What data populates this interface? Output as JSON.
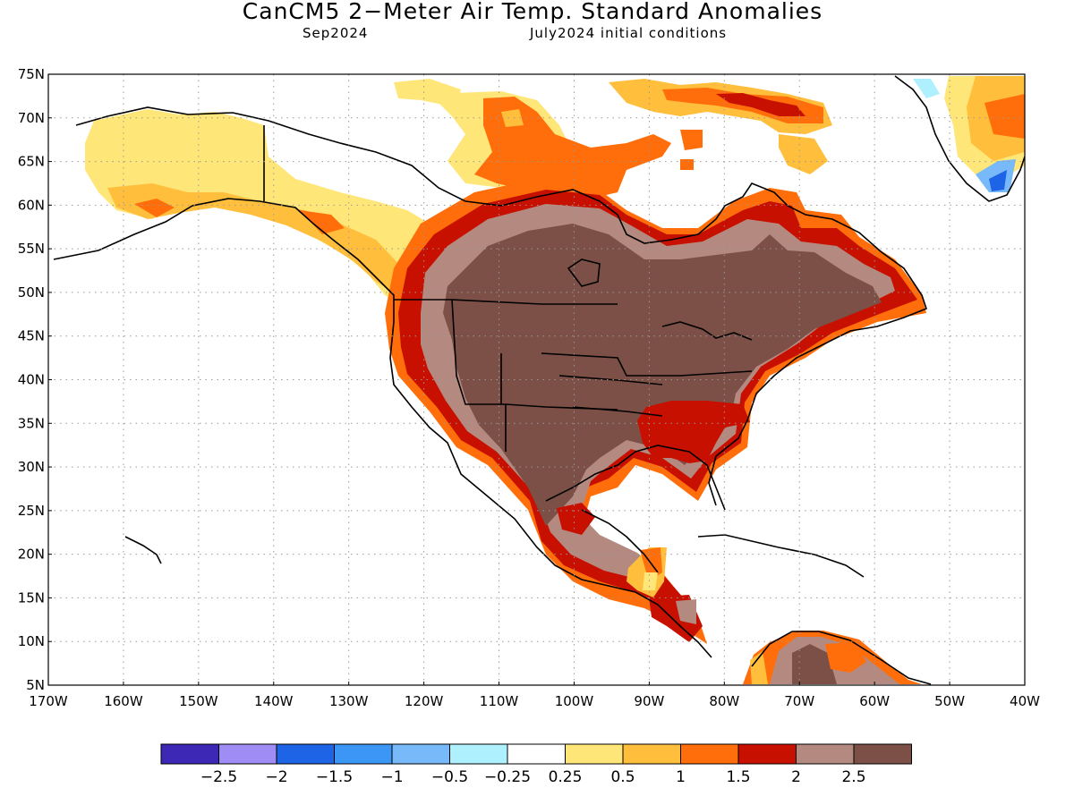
{
  "title": "CanCM5 2−Meter Air Temp. Standard Anomalies",
  "subtitle_left": "Sep2024",
  "subtitle_right": "July2024 initial conditions",
  "map": {
    "lon_range": [
      -170,
      -40
    ],
    "lat_range": [
      5,
      75
    ],
    "lat_ticks": [
      "75N",
      "70N",
      "65N",
      "60N",
      "55N",
      "50N",
      "45N",
      "40N",
      "35N",
      "30N",
      "25N",
      "20N",
      "15N",
      "10N",
      "5N"
    ],
    "lon_ticks": [
      "170W",
      "160W",
      "150W",
      "140W",
      "130W",
      "120W",
      "110W",
      "100W",
      "90W",
      "80W",
      "70W",
      "60W",
      "50W",
      "40W"
    ],
    "grid": "dotted"
  },
  "colorbar": {
    "colors": [
      "#3c28b4",
      "#9f8cf5",
      "#1e64e6",
      "#3c96f5",
      "#78b9fa",
      "#aff0ff",
      "#ffffff",
      "#ffe678",
      "#ffbe3c",
      "#ff6e0a",
      "#c81000",
      "#b48a80",
      "#7c5046"
    ],
    "labels": [
      "−2.5",
      "−2",
      "−1.5",
      "−1",
      "−0.5",
      "−0.25",
      "0.25",
      "0.5",
      "1",
      "1.5",
      "2",
      "2.5"
    ]
  }
}
